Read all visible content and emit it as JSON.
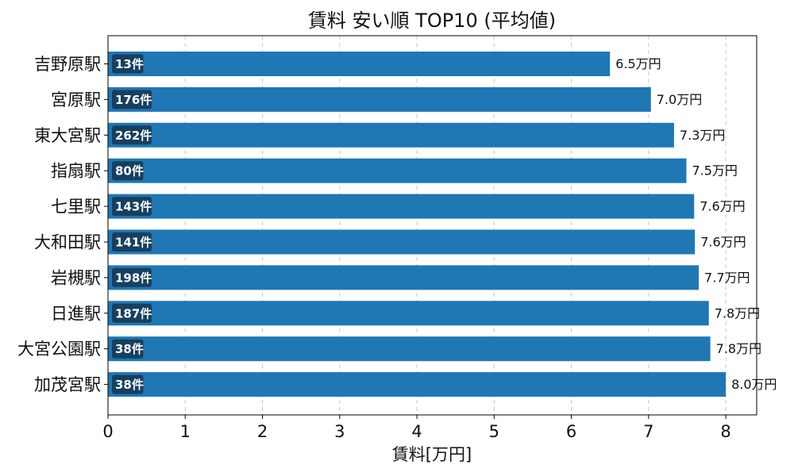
{
  "chart_data": {
    "type": "bar",
    "orientation": "horizontal",
    "title": "賃料 安い順 TOP10 (平均値)",
    "xlabel": "賃料[万円]",
    "ylabel": "",
    "xlim": [
      0,
      8.4
    ],
    "xticks": [
      0,
      1,
      2,
      3,
      4,
      5,
      6,
      7,
      8
    ],
    "grid": "x-dashed",
    "categories": [
      "吉野原駅",
      "宮原駅",
      "東大宮駅",
      "指扇駅",
      "七里駅",
      "大和田駅",
      "岩槻駅",
      "日進駅",
      "大宮公園駅",
      "加茂宮駅"
    ],
    "values": [
      6.5,
      7.03,
      7.33,
      7.49,
      7.59,
      7.6,
      7.65,
      7.78,
      7.8,
      8.0
    ],
    "value_labels": [
      "6.5万円",
      "7.0万円",
      "7.3万円",
      "7.5万円",
      "7.6万円",
      "7.6万円",
      "7.7万円",
      "7.8万円",
      "7.8万円",
      "8.0万円"
    ],
    "counts": [
      "13件",
      "176件",
      "262件",
      "80件",
      "143件",
      "141件",
      "198件",
      "187件",
      "38件",
      "38件"
    ],
    "colors": {
      "bar": "#1f77b4",
      "count_badge": "#173f5f",
      "grid": "#c8c8c8"
    }
  }
}
